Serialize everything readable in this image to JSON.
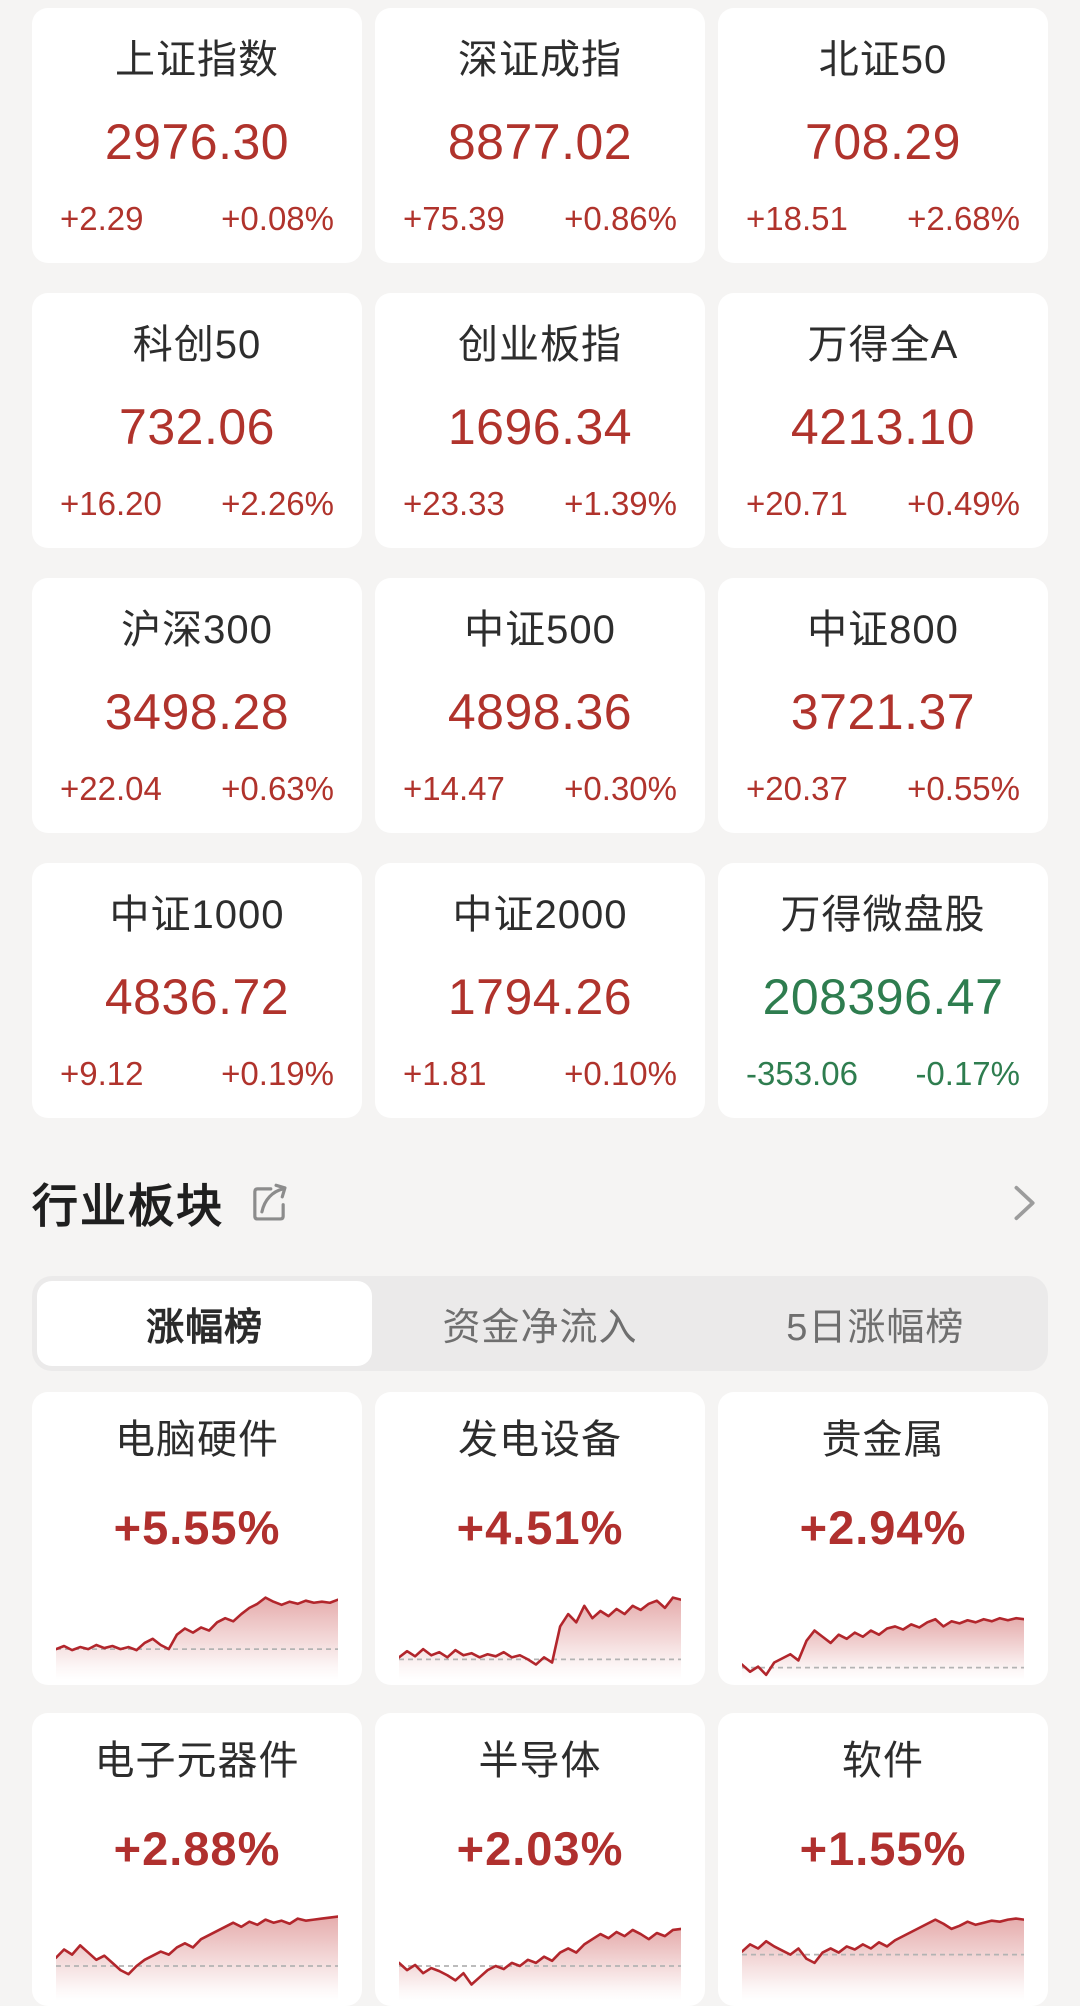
{
  "colors": {
    "up": "#b0332c",
    "down": "#2e7d4f",
    "chart_line": "#b2262c",
    "chart_fill": "#c23a3a",
    "baseline_dash": "#b3b3b3",
    "page_bg": "#f5f4f3",
    "card_bg": "#ffffff",
    "tabbar_bg": "#ebeaea"
  },
  "indices": [
    {
      "name": "上证指数",
      "value": "2976.30",
      "change": "+2.29",
      "change_pct": "+0.08%",
      "direction": "up"
    },
    {
      "name": "深证成指",
      "value": "8877.02",
      "change": "+75.39",
      "change_pct": "+0.86%",
      "direction": "up"
    },
    {
      "name": "北证50",
      "value": "708.29",
      "change": "+18.51",
      "change_pct": "+2.68%",
      "direction": "up"
    },
    {
      "name": "科创50",
      "value": "732.06",
      "change": "+16.20",
      "change_pct": "+2.26%",
      "direction": "up"
    },
    {
      "name": "创业板指",
      "value": "1696.34",
      "change": "+23.33",
      "change_pct": "+1.39%",
      "direction": "up"
    },
    {
      "name": "万得全A",
      "value": "4213.10",
      "change": "+20.71",
      "change_pct": "+0.49%",
      "direction": "up"
    },
    {
      "name": "沪深300",
      "value": "3498.28",
      "change": "+22.04",
      "change_pct": "+0.63%",
      "direction": "up"
    },
    {
      "name": "中证500",
      "value": "4898.36",
      "change": "+14.47",
      "change_pct": "+0.30%",
      "direction": "up"
    },
    {
      "name": "中证800",
      "value": "3721.37",
      "change": "+20.37",
      "change_pct": "+0.55%",
      "direction": "up"
    },
    {
      "name": "中证1000",
      "value": "4836.72",
      "change": "+9.12",
      "change_pct": "+0.19%",
      "direction": "up"
    },
    {
      "name": "中证2000",
      "value": "1794.26",
      "change": "+1.81",
      "change_pct": "+0.10%",
      "direction": "up"
    },
    {
      "name": "万得微盘股",
      "value": "208396.47",
      "change": "-353.06",
      "change_pct": "-0.17%",
      "direction": "down"
    }
  ],
  "sector_section": {
    "title": "行业板块",
    "share_icon": "share-export-icon",
    "chevron_icon": "chevron-right-icon",
    "tabs": [
      {
        "label": "涨幅榜",
        "active": true
      },
      {
        "label": "资金净流入",
        "active": false
      },
      {
        "label": "5日涨幅榜",
        "active": false
      }
    ]
  },
  "sectors": [
    {
      "name": "电脑硬件",
      "change_pct": "+5.55%",
      "chart": {
        "type": "area",
        "baseline": 70,
        "points": [
          70,
          67,
          71,
          68,
          70,
          66,
          69,
          67,
          70,
          68,
          71,
          64,
          60,
          66,
          70,
          56,
          50,
          54,
          49,
          52,
          44,
          40,
          43,
          36,
          30,
          26,
          20,
          24,
          27,
          24,
          26,
          23,
          25,
          24,
          25,
          22
        ]
      }
    },
    {
      "name": "发电设备",
      "change_pct": "+4.51%",
      "chart": {
        "type": "area",
        "baseline": 80,
        "points": [
          78,
          72,
          77,
          70,
          76,
          73,
          78,
          71,
          76,
          74,
          78,
          75,
          77,
          73,
          78,
          76,
          80,
          85,
          78,
          83,
          48,
          36,
          44,
          28,
          40,
          33,
          38,
          31,
          36,
          28,
          32,
          26,
          23,
          30,
          20,
          22
        ]
      }
    },
    {
      "name": "贵金属",
      "change_pct": "+2.94%",
      "chart": {
        "type": "area",
        "baseline": 88,
        "points": [
          85,
          92,
          87,
          95,
          83,
          79,
          75,
          81,
          62,
          52,
          58,
          64,
          56,
          60,
          54,
          58,
          52,
          56,
          50,
          48,
          51,
          46,
          49,
          44,
          41,
          48,
          43,
          45,
          42,
          44,
          41,
          43,
          40,
          42,
          40,
          41
        ]
      }
    },
    {
      "name": "电子元器件",
      "change_pct": "+2.88%",
      "chart": {
        "type": "area",
        "baseline": 66,
        "points": [
          58,
          50,
          55,
          46,
          53,
          60,
          56,
          63,
          70,
          74,
          66,
          60,
          56,
          52,
          55,
          48,
          44,
          48,
          40,
          36,
          32,
          28,
          24,
          28,
          23,
          26,
          21,
          24,
          22,
          25,
          20,
          22,
          21,
          20,
          19,
          18
        ]
      }
    },
    {
      "name": "半导体",
      "change_pct": "+2.03%",
      "chart": {
        "type": "area",
        "baseline": 66,
        "points": [
          63,
          70,
          65,
          73,
          68,
          71,
          75,
          80,
          73,
          84,
          77,
          70,
          66,
          69,
          63,
          66,
          60,
          63,
          57,
          61,
          53,
          49,
          53,
          45,
          40,
          35,
          39,
          33,
          37,
          31,
          35,
          40,
          34,
          37,
          31,
          30
        ]
      }
    },
    {
      "name": "软件",
      "change_pct": "+1.55%",
      "chart": {
        "type": "area",
        "baseline": 55,
        "points": [
          52,
          45,
          49,
          42,
          47,
          51,
          55,
          49,
          59,
          63,
          53,
          49,
          53,
          47,
          50,
          45,
          49,
          43,
          47,
          41,
          37,
          33,
          29,
          25,
          21,
          25,
          30,
          27,
          23,
          26,
          24,
          22,
          23,
          21,
          20,
          21
        ]
      }
    }
  ]
}
